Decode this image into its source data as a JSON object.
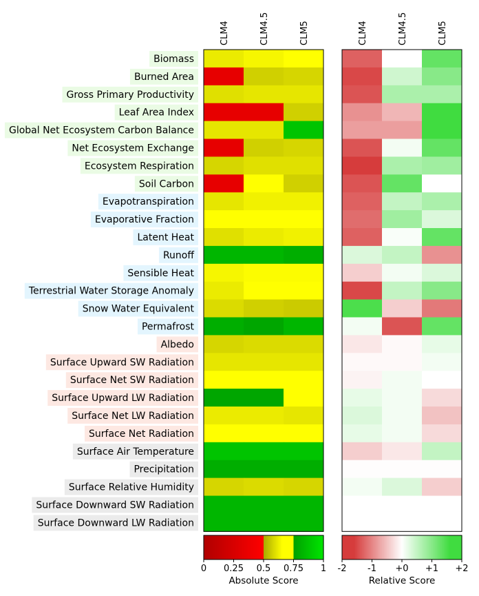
{
  "chart_data": [
    {
      "type": "heatmap",
      "title": "",
      "columns": [
        "CLM4",
        "CLM4.5",
        "CLM5"
      ],
      "rows": [
        {
          "label": "Biomass",
          "group": "ecosystem"
        },
        {
          "label": "Burned Area",
          "group": "ecosystem"
        },
        {
          "label": "Gross Primary Productivity",
          "group": "ecosystem"
        },
        {
          "label": "Leaf Area Index",
          "group": "ecosystem"
        },
        {
          "label": "Global Net Ecosystem Carbon Balance",
          "group": "ecosystem"
        },
        {
          "label": "Net Ecosystem Exchange",
          "group": "ecosystem"
        },
        {
          "label": "Ecosystem Respiration",
          "group": "ecosystem"
        },
        {
          "label": "Soil Carbon",
          "group": "ecosystem"
        },
        {
          "label": "Evapotranspiration",
          "group": "hydrology"
        },
        {
          "label": "Evaporative Fraction",
          "group": "hydrology"
        },
        {
          "label": "Latent Heat",
          "group": "hydrology"
        },
        {
          "label": "Runoff",
          "group": "hydrology"
        },
        {
          "label": "Sensible Heat",
          "group": "hydrology"
        },
        {
          "label": "Terrestrial Water Storage Anomaly",
          "group": "hydrology"
        },
        {
          "label": "Snow Water Equivalent",
          "group": "hydrology"
        },
        {
          "label": "Permafrost",
          "group": "hydrology"
        },
        {
          "label": "Albedo",
          "group": "radiation"
        },
        {
          "label": "Surface Upward SW Radiation",
          "group": "radiation"
        },
        {
          "label": "Surface Net SW Radiation",
          "group": "radiation"
        },
        {
          "label": "Surface Upward LW Radiation",
          "group": "radiation"
        },
        {
          "label": "Surface Net LW Radiation",
          "group": "radiation"
        },
        {
          "label": "Surface Net Radiation",
          "group": "radiation"
        },
        {
          "label": "Surface Air Temperature",
          "group": "forcing"
        },
        {
          "label": "Precipitation",
          "group": "forcing"
        },
        {
          "label": "Surface Relative Humidity",
          "group": "forcing"
        },
        {
          "label": "Surface Downward SW Radiation",
          "group": "forcing"
        },
        {
          "label": "Surface Downward LW Radiation",
          "group": "forcing"
        }
      ],
      "absolute_scores": [
        [
          0.62,
          0.64,
          0.66
        ],
        [
          0.35,
          0.57,
          0.58
        ],
        [
          0.6,
          0.61,
          0.61
        ],
        [
          0.35,
          0.35,
          0.57
        ],
        [
          0.61,
          0.61,
          0.88
        ],
        [
          0.35,
          0.57,
          0.58
        ],
        [
          0.58,
          0.6,
          0.6
        ],
        [
          0.35,
          0.66,
          0.57
        ],
        [
          0.61,
          0.63,
          0.63
        ],
        [
          0.66,
          0.7,
          0.68
        ],
        [
          0.6,
          0.62,
          0.63
        ],
        [
          0.83,
          0.83,
          0.8
        ],
        [
          0.64,
          0.65,
          0.65
        ],
        [
          0.62,
          0.66,
          0.66
        ],
        [
          0.59,
          0.57,
          0.56
        ],
        [
          0.8,
          0.77,
          0.83
        ],
        [
          0.58,
          0.59,
          0.59
        ],
        [
          0.61,
          0.61,
          0.61
        ],
        [
          0.68,
          0.68,
          0.67
        ],
        [
          0.77,
          0.77,
          0.7
        ],
        [
          0.62,
          0.62,
          0.61
        ],
        [
          0.67,
          0.67,
          0.66
        ],
        [
          0.88,
          0.88,
          0.88
        ],
        [
          0.8,
          0.8,
          0.8
        ],
        [
          0.58,
          0.59,
          0.58
        ],
        [
          0.83,
          0.83,
          0.83
        ],
        [
          0.83,
          0.83,
          0.83
        ]
      ],
      "relative_scores": [
        [
          -1.3,
          0.0,
          1.3
        ],
        [
          -1.5,
          0.4,
          1.0
        ],
        [
          -1.4,
          0.7,
          0.7
        ],
        [
          -0.9,
          -0.6,
          1.6
        ],
        [
          -0.8,
          -0.8,
          1.6
        ],
        [
          -1.4,
          0.1,
          1.3
        ],
        [
          -1.6,
          0.7,
          0.8
        ],
        [
          -1.4,
          1.3,
          0.0
        ],
        [
          -1.3,
          0.5,
          0.7
        ],
        [
          -1.2,
          0.8,
          0.3
        ],
        [
          -1.3,
          0.05,
          1.3
        ],
        [
          0.3,
          0.5,
          -0.9
        ],
        [
          -0.4,
          0.1,
          0.3
        ],
        [
          -1.5,
          0.5,
          1.0
        ],
        [
          1.5,
          -0.4,
          -1.1
        ],
        [
          0.1,
          -1.4,
          1.3
        ],
        [
          -0.2,
          -0.05,
          0.2
        ],
        [
          -0.05,
          -0.05,
          0.1
        ],
        [
          -0.1,
          0.1,
          0.0
        ],
        [
          0.2,
          0.1,
          -0.3
        ],
        [
          0.3,
          0.1,
          -0.5
        ],
        [
          0.2,
          0.1,
          -0.3
        ],
        [
          -0.4,
          -0.2,
          0.5
        ],
        [
          -0.02,
          -0.02,
          -0.02
        ],
        [
          0.1,
          0.3,
          -0.4
        ],
        [
          null,
          null,
          null
        ],
        [
          null,
          null,
          null
        ]
      ],
      "colorbars": {
        "absolute": {
          "label": "Absolute Score",
          "ticks": [
            "0",
            "0.25",
            "0.5",
            "0.75",
            "1"
          ],
          "range": [
            0,
            1
          ]
        },
        "relative": {
          "label": "Relative Score",
          "ticks": [
            "-2",
            "-1",
            "+0",
            "+1",
            "+2"
          ],
          "range": [
            -2,
            2
          ]
        }
      },
      "group_colors": {
        "ecosystem": "#eafbe4",
        "hydrology": "#e3f5fe",
        "radiation": "#fde8e2",
        "forcing": "#ebebeb"
      }
    }
  ]
}
